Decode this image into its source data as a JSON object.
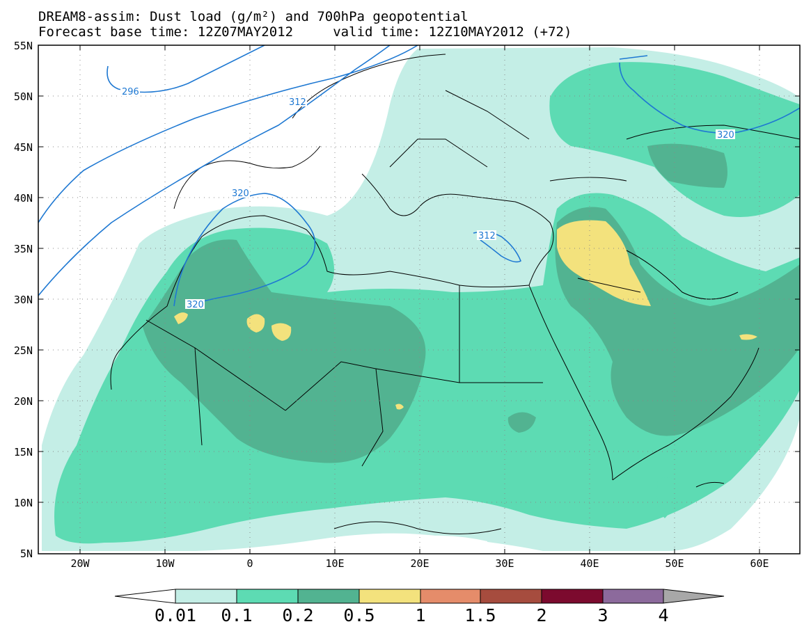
{
  "title_line1": "DREAM8-assim: Dust load (g/m²) and 700hPa geopotential",
  "title_line2": "Forecast base time: 12Z07MAY2012     valid time: 12Z10MAY2012 (+72)",
  "lat_labels": [
    "55N",
    "50N",
    "45N",
    "40N",
    "35N",
    "30N",
    "25N",
    "20N",
    "15N",
    "10N",
    "5N"
  ],
  "lon_labels": [
    "20W",
    "10W",
    "0",
    "10E",
    "20E",
    "30E",
    "40E",
    "50E",
    "60E"
  ],
  "contour_labels": [
    "296",
    "312",
    "320",
    "320",
    "320",
    "312"
  ],
  "colorbar": {
    "labels": [
      "0.01",
      "0.1",
      "0.2",
      "0.5",
      "1",
      "1.5",
      "2",
      "3",
      "4"
    ],
    "colors": [
      "#ffffff",
      "#c4eee6",
      "#5ddbb3",
      "#52b391",
      "#f3e27d",
      "#e58c6a",
      "#a64c3e",
      "#7c0a2e",
      "#8c6a9c",
      "#a8a8a8"
    ]
  },
  "colors": {
    "dust_0_01": "#c4eee6",
    "dust_0_1": "#5ddbb3",
    "dust_0_2": "#52b391",
    "dust_0_5": "#f3e27d",
    "geopotential_contour": "#1e78d2",
    "border": "#000000"
  }
}
